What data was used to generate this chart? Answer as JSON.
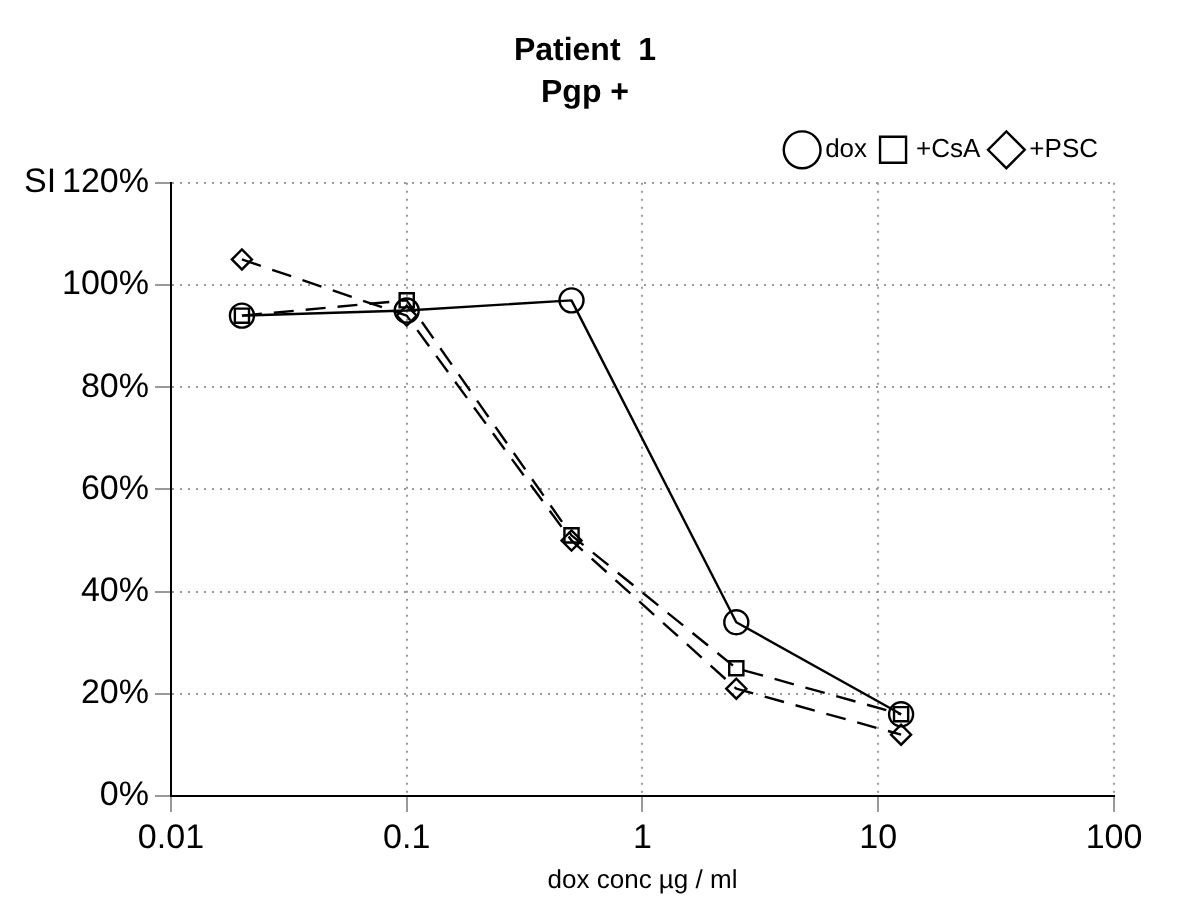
{
  "chart_data": {
    "type": "line",
    "title": "Patient  1",
    "subtitle": "Pgp +",
    "xlabel": "dox conc µg / ml",
    "ylabel": "SI",
    "x": [
      0.02,
      0.1,
      0.5,
      2.5,
      12.5
    ],
    "series": [
      {
        "name": "dox",
        "color": "#000000",
        "marker": "circle",
        "line_style": "solid",
        "values": [
          94,
          95,
          97,
          34,
          16
        ]
      },
      {
        "name": "+CsA",
        "color": "#000000",
        "marker": "square",
        "line_style": "dashed",
        "values": [
          94,
          97,
          51,
          25,
          16
        ]
      },
      {
        "name": "+PSC",
        "color": "#000000",
        "marker": "diamond",
        "line_style": "dashed",
        "values": [
          105,
          94,
          50,
          21,
          12
        ]
      }
    ],
    "log": "x",
    "xlim": [
      0.01,
      100
    ],
    "xticks": [
      0.01,
      0.1,
      1,
      10,
      100
    ],
    "ylim": [
      0,
      120
    ],
    "yticks": [
      {
        "value": 0,
        "label": "0%"
      },
      {
        "value": 20,
        "label": "20%"
      },
      {
        "value": 40,
        "label": "40%"
      },
      {
        "value": 60,
        "label": "60%"
      },
      {
        "value": 80,
        "label": "80%"
      },
      {
        "value": 100,
        "label": "100%"
      },
      {
        "value": 120,
        "label": "120%"
      }
    ],
    "grid": true,
    "legend": "top right"
  }
}
